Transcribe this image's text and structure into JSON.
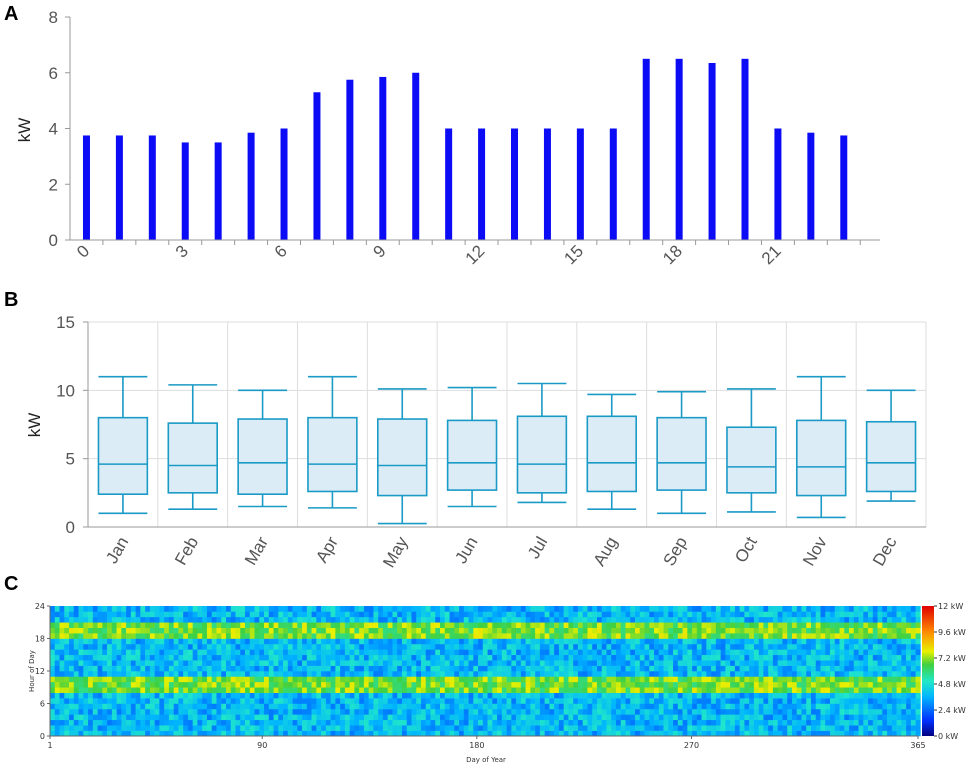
{
  "colors": {
    "bar_fill": "#0b0bf5",
    "box_stroke": "#1a9ac6",
    "box_fill": "#dcecf7",
    "grid": "#dddddd",
    "axis": "#999999"
  },
  "chart_data": [
    {
      "panel": "A",
      "type": "bar",
      "ylabel": "kW",
      "xlabel": "",
      "ylim": [
        0,
        8
      ],
      "yticks": [
        "0",
        "2",
        "4",
        "6",
        "8"
      ],
      "xticks": [
        "0",
        "3",
        "6",
        "9",
        "12",
        "15",
        "18",
        "21"
      ],
      "categories": [
        "0",
        "1",
        "2",
        "3",
        "4",
        "5",
        "6",
        "7",
        "8",
        "9",
        "10",
        "11",
        "12",
        "13",
        "14",
        "15",
        "16",
        "17",
        "18",
        "19",
        "20",
        "21",
        "22",
        "23"
      ],
      "values": [
        3.75,
        3.75,
        3.75,
        3.5,
        3.5,
        3.85,
        4.0,
        5.3,
        5.75,
        5.85,
        6.0,
        4.0,
        4.0,
        4.0,
        4.0,
        4.0,
        4.0,
        6.5,
        6.5,
        6.35,
        6.5,
        4.0,
        3.85,
        3.75
      ],
      "grid": false
    },
    {
      "panel": "B",
      "type": "box",
      "ylabel": "kW",
      "ylim": [
        0,
        15
      ],
      "yticks": [
        "0",
        "5",
        "10",
        "15"
      ],
      "categories": [
        "Jan",
        "Feb",
        "Mar",
        "Apr",
        "May",
        "Jun",
        "Jul",
        "Aug",
        "Sep",
        "Oct",
        "Nov",
        "Dec"
      ],
      "series": [
        {
          "min": 1.0,
          "q1": 2.4,
          "median": 4.6,
          "q3": 8.0,
          "max": 11.0
        },
        {
          "min": 1.3,
          "q1": 2.5,
          "median": 4.5,
          "q3": 7.6,
          "max": 10.4
        },
        {
          "min": 1.5,
          "q1": 2.4,
          "median": 4.7,
          "q3": 7.9,
          "max": 10.0
        },
        {
          "min": 1.4,
          "q1": 2.6,
          "median": 4.6,
          "q3": 8.0,
          "max": 11.0
        },
        {
          "min": 0.25,
          "q1": 2.3,
          "median": 4.5,
          "q3": 7.9,
          "max": 10.1
        },
        {
          "min": 1.5,
          "q1": 2.7,
          "median": 4.7,
          "q3": 7.8,
          "max": 10.2
        },
        {
          "min": 1.8,
          "q1": 2.5,
          "median": 4.6,
          "q3": 8.1,
          "max": 10.5
        },
        {
          "min": 1.3,
          "q1": 2.6,
          "median": 4.7,
          "q3": 8.1,
          "max": 9.7
        },
        {
          "min": 1.0,
          "q1": 2.7,
          "median": 4.7,
          "q3": 8.0,
          "max": 9.9
        },
        {
          "min": 1.1,
          "q1": 2.5,
          "median": 4.4,
          "q3": 7.3,
          "max": 10.1
        },
        {
          "min": 0.7,
          "q1": 2.3,
          "median": 4.4,
          "q3": 7.8,
          "max": 11.0
        },
        {
          "min": 1.9,
          "q1": 2.6,
          "median": 4.7,
          "q3": 7.7,
          "max": 10.0
        }
      ],
      "grid": true
    },
    {
      "panel": "C",
      "type": "heatmap",
      "xlabel": "Day of Year",
      "ylabel": "Hour of Day",
      "xlim": [
        1,
        365
      ],
      "ylim": [
        0,
        24
      ],
      "xticks": [
        "1",
        "90",
        "180",
        "270",
        "365"
      ],
      "yticks": [
        "0",
        "6",
        "12",
        "18",
        "24"
      ],
      "colorbar": {
        "range": [
          0,
          12
        ],
        "unit": "kW",
        "ticks": [
          "0 kW",
          "2.4 kW",
          "4.8 kW",
          "7.2 kW",
          "9.6 kW",
          "12 kW"
        ]
      },
      "high_bands_hours": [
        [
          8,
          11
        ],
        [
          18,
          21
        ]
      ]
    }
  ]
}
